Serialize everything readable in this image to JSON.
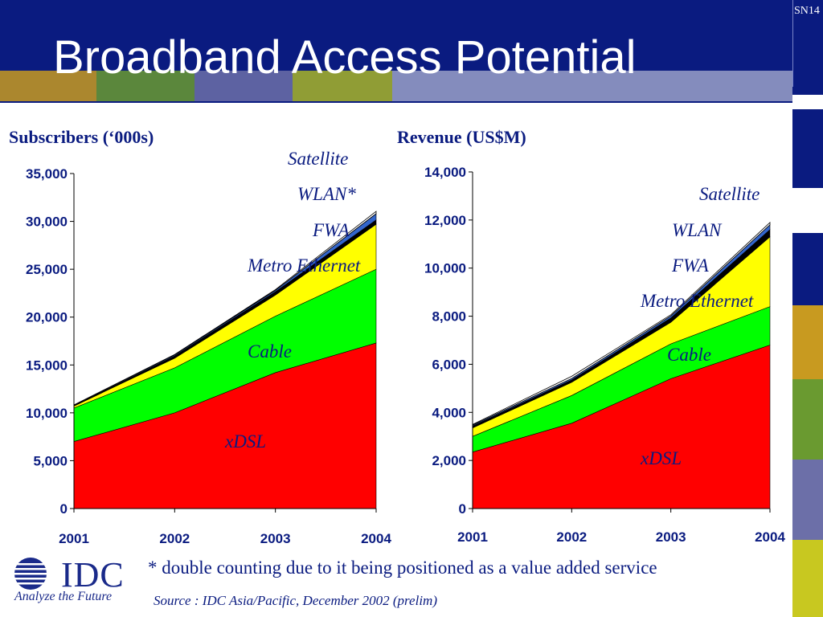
{
  "slide": {
    "title": "Broadband Access Potential",
    "slide_number": "SN14",
    "footnote": "* double counting due to it being positioned as a value added service",
    "source": "Source : IDC Asia/Pacific, December 2002 (prelim)",
    "logo_text": "IDC",
    "logo_tagline": "Analyze the Future"
  },
  "colors": {
    "header": "#0a1b80",
    "xdsl": "#ff0000",
    "cable": "#00ff00",
    "metro_ethernet": "#ffff00",
    "fwa": "#000000",
    "wlan": "#3366cc",
    "satellite": "#ffffff"
  },
  "chart_data": [
    {
      "type": "area",
      "stacked": true,
      "title": "Subscribers (‘000s)",
      "x": [
        "2001",
        "2002",
        "2003",
        "2004"
      ],
      "ylim": [
        0,
        35000
      ],
      "yticks": [
        "0",
        "5,000",
        "10,000",
        "15,000",
        "20,000",
        "25,000",
        "30,000",
        "35,000"
      ],
      "series": [
        {
          "name": "xDSL",
          "values": [
            7000,
            10000,
            14200,
            17300
          ],
          "color": "#ff0000"
        },
        {
          "name": "Cable",
          "values": [
            3500,
            4700,
            5900,
            7700
          ],
          "color": "#00ff00"
        },
        {
          "name": "Metro Ethernet",
          "values": [
            200,
            1000,
            2200,
            4700
          ],
          "color": "#ffff00"
        },
        {
          "name": "FWA",
          "values": [
            50,
            250,
            350,
            450
          ],
          "color": "#000000"
        },
        {
          "name": "WLAN*",
          "values": [
            50,
            100,
            150,
            650
          ],
          "color": "#3366cc"
        },
        {
          "name": "Satellite",
          "values": [
            30,
            50,
            80,
            250
          ],
          "color": "#ffffff"
        }
      ],
      "legend_labels": [
        "Satellite",
        "WLAN*",
        "FWA",
        "Metro Ethernet",
        "Cable",
        "xDSL"
      ]
    },
    {
      "type": "area",
      "stacked": true,
      "title": "Revenue (US$M)",
      "x": [
        "2001",
        "2002",
        "2003",
        "2004"
      ],
      "ylim": [
        0,
        14000
      ],
      "yticks": [
        "0",
        "2,000",
        "4,000",
        "6,000",
        "8,000",
        "10,000",
        "12,000",
        "14,000"
      ],
      "series": [
        {
          "name": "xDSL",
          "values": [
            2350,
            3550,
            5400,
            6800
          ],
          "color": "#ff0000"
        },
        {
          "name": "Cable",
          "values": [
            650,
            1150,
            1450,
            1600
          ],
          "color": "#00ff00"
        },
        {
          "name": "Metro Ethernet",
          "values": [
            350,
            550,
            900,
            2900
          ],
          "color": "#ffff00"
        },
        {
          "name": "FWA",
          "values": [
            80,
            100,
            180,
            300
          ],
          "color": "#000000"
        },
        {
          "name": "WLAN",
          "values": [
            40,
            60,
            80,
            200
          ],
          "color": "#3366cc"
        },
        {
          "name": "Satellite",
          "values": [
            30,
            90,
            50,
            100
          ],
          "color": "#ffffff"
        }
      ],
      "legend_labels": [
        "Satellite",
        "WLAN",
        "FWA",
        "Metro Ethernet",
        "Cable",
        "xDSL"
      ]
    }
  ]
}
